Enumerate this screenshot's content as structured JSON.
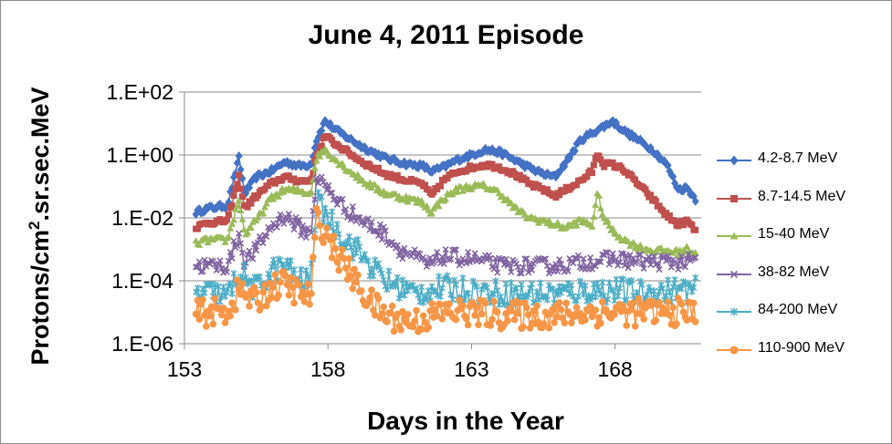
{
  "chart_data": {
    "type": "scatter",
    "title": "June 4, 2011 Episode",
    "xlabel": "Days in the Year",
    "ylabel_base": "Protons/cm",
    "ylabel_sup": "2",
    "ylabel_rest": ".sr.sec.MeV",
    "xlim": [
      153,
      171
    ],
    "xticks": [
      153,
      158,
      163,
      168
    ],
    "xtick_labels": [
      "153",
      "158",
      "163",
      "168"
    ],
    "y_log_scale": true,
    "ylim": [
      1e-06,
      100
    ],
    "yticks": [
      100,
      1,
      0.01,
      0.0001,
      1e-06
    ],
    "ytick_labels": [
      "1.E+02",
      "1.E+00",
      "1.E-02",
      "1.E-04",
      "1.E-06"
    ],
    "grid": {
      "horizontal": true,
      "vertical": false
    },
    "legend_position": "right",
    "series": [
      {
        "name": "4.2-8.7 MeV",
        "color": "#4472C4",
        "marker": "diamond",
        "noise": 0.08,
        "points": [
          [
            153.4,
            0.015
          ],
          [
            153.8,
            0.02
          ],
          [
            154.5,
            0.025
          ],
          [
            154.9,
            0.8
          ],
          [
            155.1,
            0.06
          ],
          [
            155.5,
            0.2
          ],
          [
            156.0,
            0.3
          ],
          [
            156.5,
            0.6
          ],
          [
            157.0,
            0.45
          ],
          [
            157.4,
            0.5
          ],
          [
            157.6,
            3
          ],
          [
            157.9,
            12
          ],
          [
            158.2,
            7
          ],
          [
            158.6,
            4
          ],
          [
            159.2,
            1.8
          ],
          [
            160.0,
            0.8
          ],
          [
            160.8,
            0.5
          ],
          [
            161.3,
            0.45
          ],
          [
            161.6,
            0.3
          ],
          [
            162.0,
            0.4
          ],
          [
            162.5,
            0.7
          ],
          [
            163.0,
            1.0
          ],
          [
            163.5,
            1.5
          ],
          [
            164.0,
            1.2
          ],
          [
            164.5,
            0.7
          ],
          [
            165.0,
            0.4
          ],
          [
            165.5,
            0.25
          ],
          [
            165.9,
            0.2
          ],
          [
            166.3,
            0.6
          ],
          [
            166.8,
            3
          ],
          [
            167.2,
            5
          ],
          [
            167.6,
            8
          ],
          [
            167.9,
            12
          ],
          [
            168.3,
            6
          ],
          [
            168.8,
            3
          ],
          [
            169.3,
            1.5
          ],
          [
            169.8,
            0.5
          ],
          [
            170.2,
            0.08
          ],
          [
            170.5,
            0.09
          ],
          [
            170.8,
            0.04
          ]
        ]
      },
      {
        "name": "8.7-14.5 MeV",
        "color": "#C0504D",
        "marker": "square",
        "noise": 0.08,
        "points": [
          [
            153.4,
            0.005
          ],
          [
            153.8,
            0.007
          ],
          [
            154.5,
            0.008
          ],
          [
            154.9,
            0.2
          ],
          [
            155.1,
            0.02
          ],
          [
            155.5,
            0.05
          ],
          [
            156.0,
            0.12
          ],
          [
            156.5,
            0.2
          ],
          [
            157.0,
            0.15
          ],
          [
            157.4,
            0.15
          ],
          [
            157.6,
            1.0
          ],
          [
            157.9,
            4
          ],
          [
            158.2,
            2.5
          ],
          [
            158.6,
            1.4
          ],
          [
            159.2,
            0.6
          ],
          [
            160.0,
            0.25
          ],
          [
            160.8,
            0.15
          ],
          [
            161.3,
            0.12
          ],
          [
            161.6,
            0.05
          ],
          [
            162.0,
            0.15
          ],
          [
            162.5,
            0.3
          ],
          [
            163.0,
            0.4
          ],
          [
            163.5,
            0.5
          ],
          [
            164.0,
            0.4
          ],
          [
            164.5,
            0.25
          ],
          [
            165.0,
            0.12
          ],
          [
            165.5,
            0.08
          ],
          [
            165.9,
            0.05
          ],
          [
            166.3,
            0.08
          ],
          [
            166.8,
            0.15
          ],
          [
            167.2,
            0.3
          ],
          [
            167.4,
            1.2
          ],
          [
            167.6,
            0.5
          ],
          [
            167.9,
            0.5
          ],
          [
            168.3,
            0.35
          ],
          [
            168.8,
            0.12
          ],
          [
            169.3,
            0.04
          ],
          [
            169.8,
            0.012
          ],
          [
            170.2,
            0.006
          ],
          [
            170.5,
            0.008
          ],
          [
            170.8,
            0.004
          ]
        ]
      },
      {
        "name": "15-40 MeV",
        "color": "#9BBB59",
        "marker": "triangle",
        "noise": 0.1,
        "points": [
          [
            153.4,
            0.0015
          ],
          [
            153.8,
            0.002
          ],
          [
            154.5,
            0.002
          ],
          [
            154.9,
            0.04
          ],
          [
            155.1,
            0.003
          ],
          [
            155.5,
            0.008
          ],
          [
            156.0,
            0.04
          ],
          [
            156.5,
            0.08
          ],
          [
            157.0,
            0.07
          ],
          [
            157.4,
            0.06
          ],
          [
            157.6,
            0.8
          ],
          [
            157.9,
            1.5
          ],
          [
            158.2,
            0.8
          ],
          [
            158.6,
            0.4
          ],
          [
            159.2,
            0.15
          ],
          [
            160.0,
            0.06
          ],
          [
            160.8,
            0.04
          ],
          [
            161.3,
            0.03
          ],
          [
            161.6,
            0.015
          ],
          [
            162.0,
            0.04
          ],
          [
            162.5,
            0.08
          ],
          [
            163.0,
            0.1
          ],
          [
            163.5,
            0.1
          ],
          [
            164.0,
            0.06
          ],
          [
            164.5,
            0.02
          ],
          [
            165.0,
            0.01
          ],
          [
            165.5,
            0.008
          ],
          [
            165.9,
            0.006
          ],
          [
            166.3,
            0.005
          ],
          [
            166.8,
            0.008
          ],
          [
            167.2,
            0.006
          ],
          [
            167.4,
            0.06
          ],
          [
            167.6,
            0.01
          ],
          [
            167.9,
            0.004
          ],
          [
            168.3,
            0.002
          ],
          [
            168.8,
            0.0012
          ],
          [
            169.3,
            0.0009
          ],
          [
            169.8,
            0.0009
          ],
          [
            170.2,
            0.0008
          ],
          [
            170.5,
            0.001
          ],
          [
            170.8,
            0.0008
          ]
        ]
      },
      {
        "name": "38-82 MeV",
        "color": "#8064A2",
        "marker": "x",
        "noise": 0.25,
        "points": [
          [
            153.4,
            0.0003
          ],
          [
            153.8,
            0.0003
          ],
          [
            154.5,
            0.0003
          ],
          [
            154.9,
            0.003
          ],
          [
            155.1,
            0.0004
          ],
          [
            155.5,
            0.001
          ],
          [
            156.0,
            0.005
          ],
          [
            156.5,
            0.012
          ],
          [
            157.0,
            0.005
          ],
          [
            157.4,
            0.003
          ],
          [
            157.6,
            0.2
          ],
          [
            157.9,
            0.1
          ],
          [
            158.2,
            0.05
          ],
          [
            158.6,
            0.02
          ],
          [
            159.2,
            0.008
          ],
          [
            160.0,
            0.003
          ],
          [
            160.5,
            0.001
          ],
          [
            161.0,
            0.0006
          ],
          [
            161.5,
            0.0003
          ],
          [
            162.0,
            0.0006
          ],
          [
            163.0,
            0.0005
          ],
          [
            164.0,
            0.0003
          ],
          [
            165.0,
            0.0003
          ],
          [
            166.0,
            0.0003
          ],
          [
            167.0,
            0.0004
          ],
          [
            168.0,
            0.0005
          ],
          [
            169.0,
            0.0004
          ],
          [
            170.0,
            0.0004
          ],
          [
            170.8,
            0.0004
          ]
        ]
      },
      {
        "name": "84-200 MeV",
        "color": "#4BACC6",
        "marker": "star",
        "noise": 0.4,
        "points": [
          [
            153.4,
            4e-05
          ],
          [
            154.0,
            4e-05
          ],
          [
            154.5,
            3e-05
          ],
          [
            154.9,
            0.0002
          ],
          [
            155.5,
            5e-05
          ],
          [
            156.0,
            0.0002
          ],
          [
            156.5,
            0.0003
          ],
          [
            157.0,
            0.0001
          ],
          [
            157.4,
            0.0001
          ],
          [
            157.6,
            0.03
          ],
          [
            157.9,
            0.015
          ],
          [
            158.2,
            0.006
          ],
          [
            158.6,
            0.002
          ],
          [
            159.0,
            0.001
          ],
          [
            159.5,
            0.0003
          ],
          [
            160.0,
            0.0001
          ],
          [
            161.0,
            4e-05
          ],
          [
            162.0,
            6e-05
          ],
          [
            163.0,
            5e-05
          ],
          [
            164.0,
            4e-05
          ],
          [
            165.0,
            4e-05
          ],
          [
            166.0,
            4e-05
          ],
          [
            167.0,
            5e-05
          ],
          [
            168.0,
            5e-05
          ],
          [
            169.0,
            4e-05
          ],
          [
            170.0,
            5e-05
          ],
          [
            170.8,
            5e-05
          ]
        ]
      },
      {
        "name": "110-900 MeV",
        "color": "#F79646",
        "marker": "circle",
        "noise": 0.45,
        "points": [
          [
            153.4,
            1e-05
          ],
          [
            154.0,
            1e-05
          ],
          [
            154.5,
            1e-05
          ],
          [
            154.9,
            5e-05
          ],
          [
            155.5,
            2e-05
          ],
          [
            156.0,
            6e-05
          ],
          [
            156.5,
            8e-05
          ],
          [
            157.0,
            4e-05
          ],
          [
            157.4,
            3e-05
          ],
          [
            157.6,
            0.008
          ],
          [
            157.9,
            0.004
          ],
          [
            158.2,
            0.001
          ],
          [
            158.6,
            0.0003
          ],
          [
            159.0,
            8e-05
          ],
          [
            159.5,
            2e-05
          ],
          [
            160.0,
            8e-06
          ],
          [
            161.0,
            5e-06
          ],
          [
            162.0,
            1e-05
          ],
          [
            163.0,
            1e-05
          ],
          [
            164.0,
            8e-06
          ],
          [
            165.0,
            8e-06
          ],
          [
            166.0,
            8e-06
          ],
          [
            167.0,
            1e-05
          ],
          [
            168.0,
            1e-05
          ],
          [
            169.0,
            1e-05
          ],
          [
            170.0,
            1e-05
          ],
          [
            170.8,
            1e-05
          ]
        ]
      }
    ]
  }
}
